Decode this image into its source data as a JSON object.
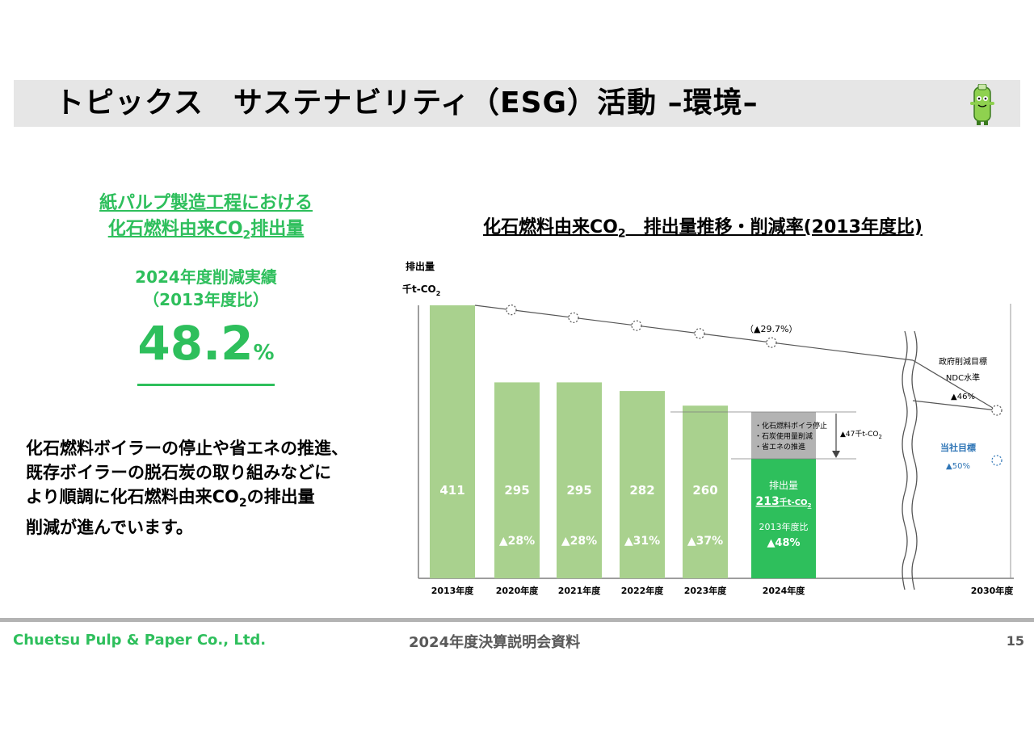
{
  "header": {
    "title": "トピックス　サステナビリティ（ESG）活動 –環境–"
  },
  "left": {
    "section_title_line1": "紙パルプ製造工程における",
    "section_title_line2_prefix": "化石燃料由来CO",
    "section_title_line2_sub": "2",
    "section_title_line2_suffix": "排出量",
    "result_label": "2024年度削減実績",
    "result_basis": "（2013年度比）",
    "result_value": "48.2",
    "result_unit": "%",
    "desc_line1": "化石燃料ボイラーの停止や省エネの推進、",
    "desc_line2": "既存ボイラーの脱石炭の取り組みなどに",
    "desc_line3_prefix": "より順調に化石燃料由来CO",
    "desc_line3_sub": "2",
    "desc_line3_suffix": "の排出量",
    "desc_line4": "削減が進んでいます。"
  },
  "chart_title_prefix": "化石燃料由来CO",
  "chart_title_sub": "2",
  "chart_title_suffix": "　排出量推移・削減率(2013年度比)",
  "chart_data": {
    "type": "bar",
    "ylabel_line1": "排出量",
    "ylabel_line2": "千t-CO",
    "ylabel_sub": "2",
    "categories": [
      "2013年度",
      "2020年度",
      "2021年度",
      "2022年度",
      "2023年度",
      "2024年度"
    ],
    "values": [
      411,
      295,
      295,
      282,
      260,
      213
    ],
    "reduction_labels": [
      "",
      "▲28%",
      "▲28%",
      "▲31%",
      "▲37%",
      ""
    ],
    "target_category": "2030年度",
    "highlight_2024": {
      "label": "排出量",
      "value_text": "213",
      "unit_text": "千t-CO",
      "unit_sub": "2",
      "ratio_label": "2013年度比",
      "ratio_value": "▲48%"
    },
    "reduction_box": {
      "items": [
        "・化石燃料ボイラ停止",
        "・石炭使用量削減",
        "・省エネの推進"
      ],
      "arrow_label": "▲47千t-CO",
      "arrow_label_sub": "2"
    },
    "target_line_note": "（▲29.7%）",
    "gov_target": {
      "line1": "政府削減目標",
      "line2": "NDC水準",
      "value": "▲46%"
    },
    "company_target": {
      "line1": "当社目標",
      "value": "▲50%"
    },
    "colors": {
      "bar": "#a9d18e",
      "bar_2024": "#2ebf5c",
      "reduction_box": "#b3b3b3",
      "company_target": "#2e75b6"
    }
  },
  "footer": {
    "company": "Chuetsu Pulp & Paper Co., Ltd.",
    "doc_title": "2024年度決算説明会資料",
    "page": "15"
  }
}
